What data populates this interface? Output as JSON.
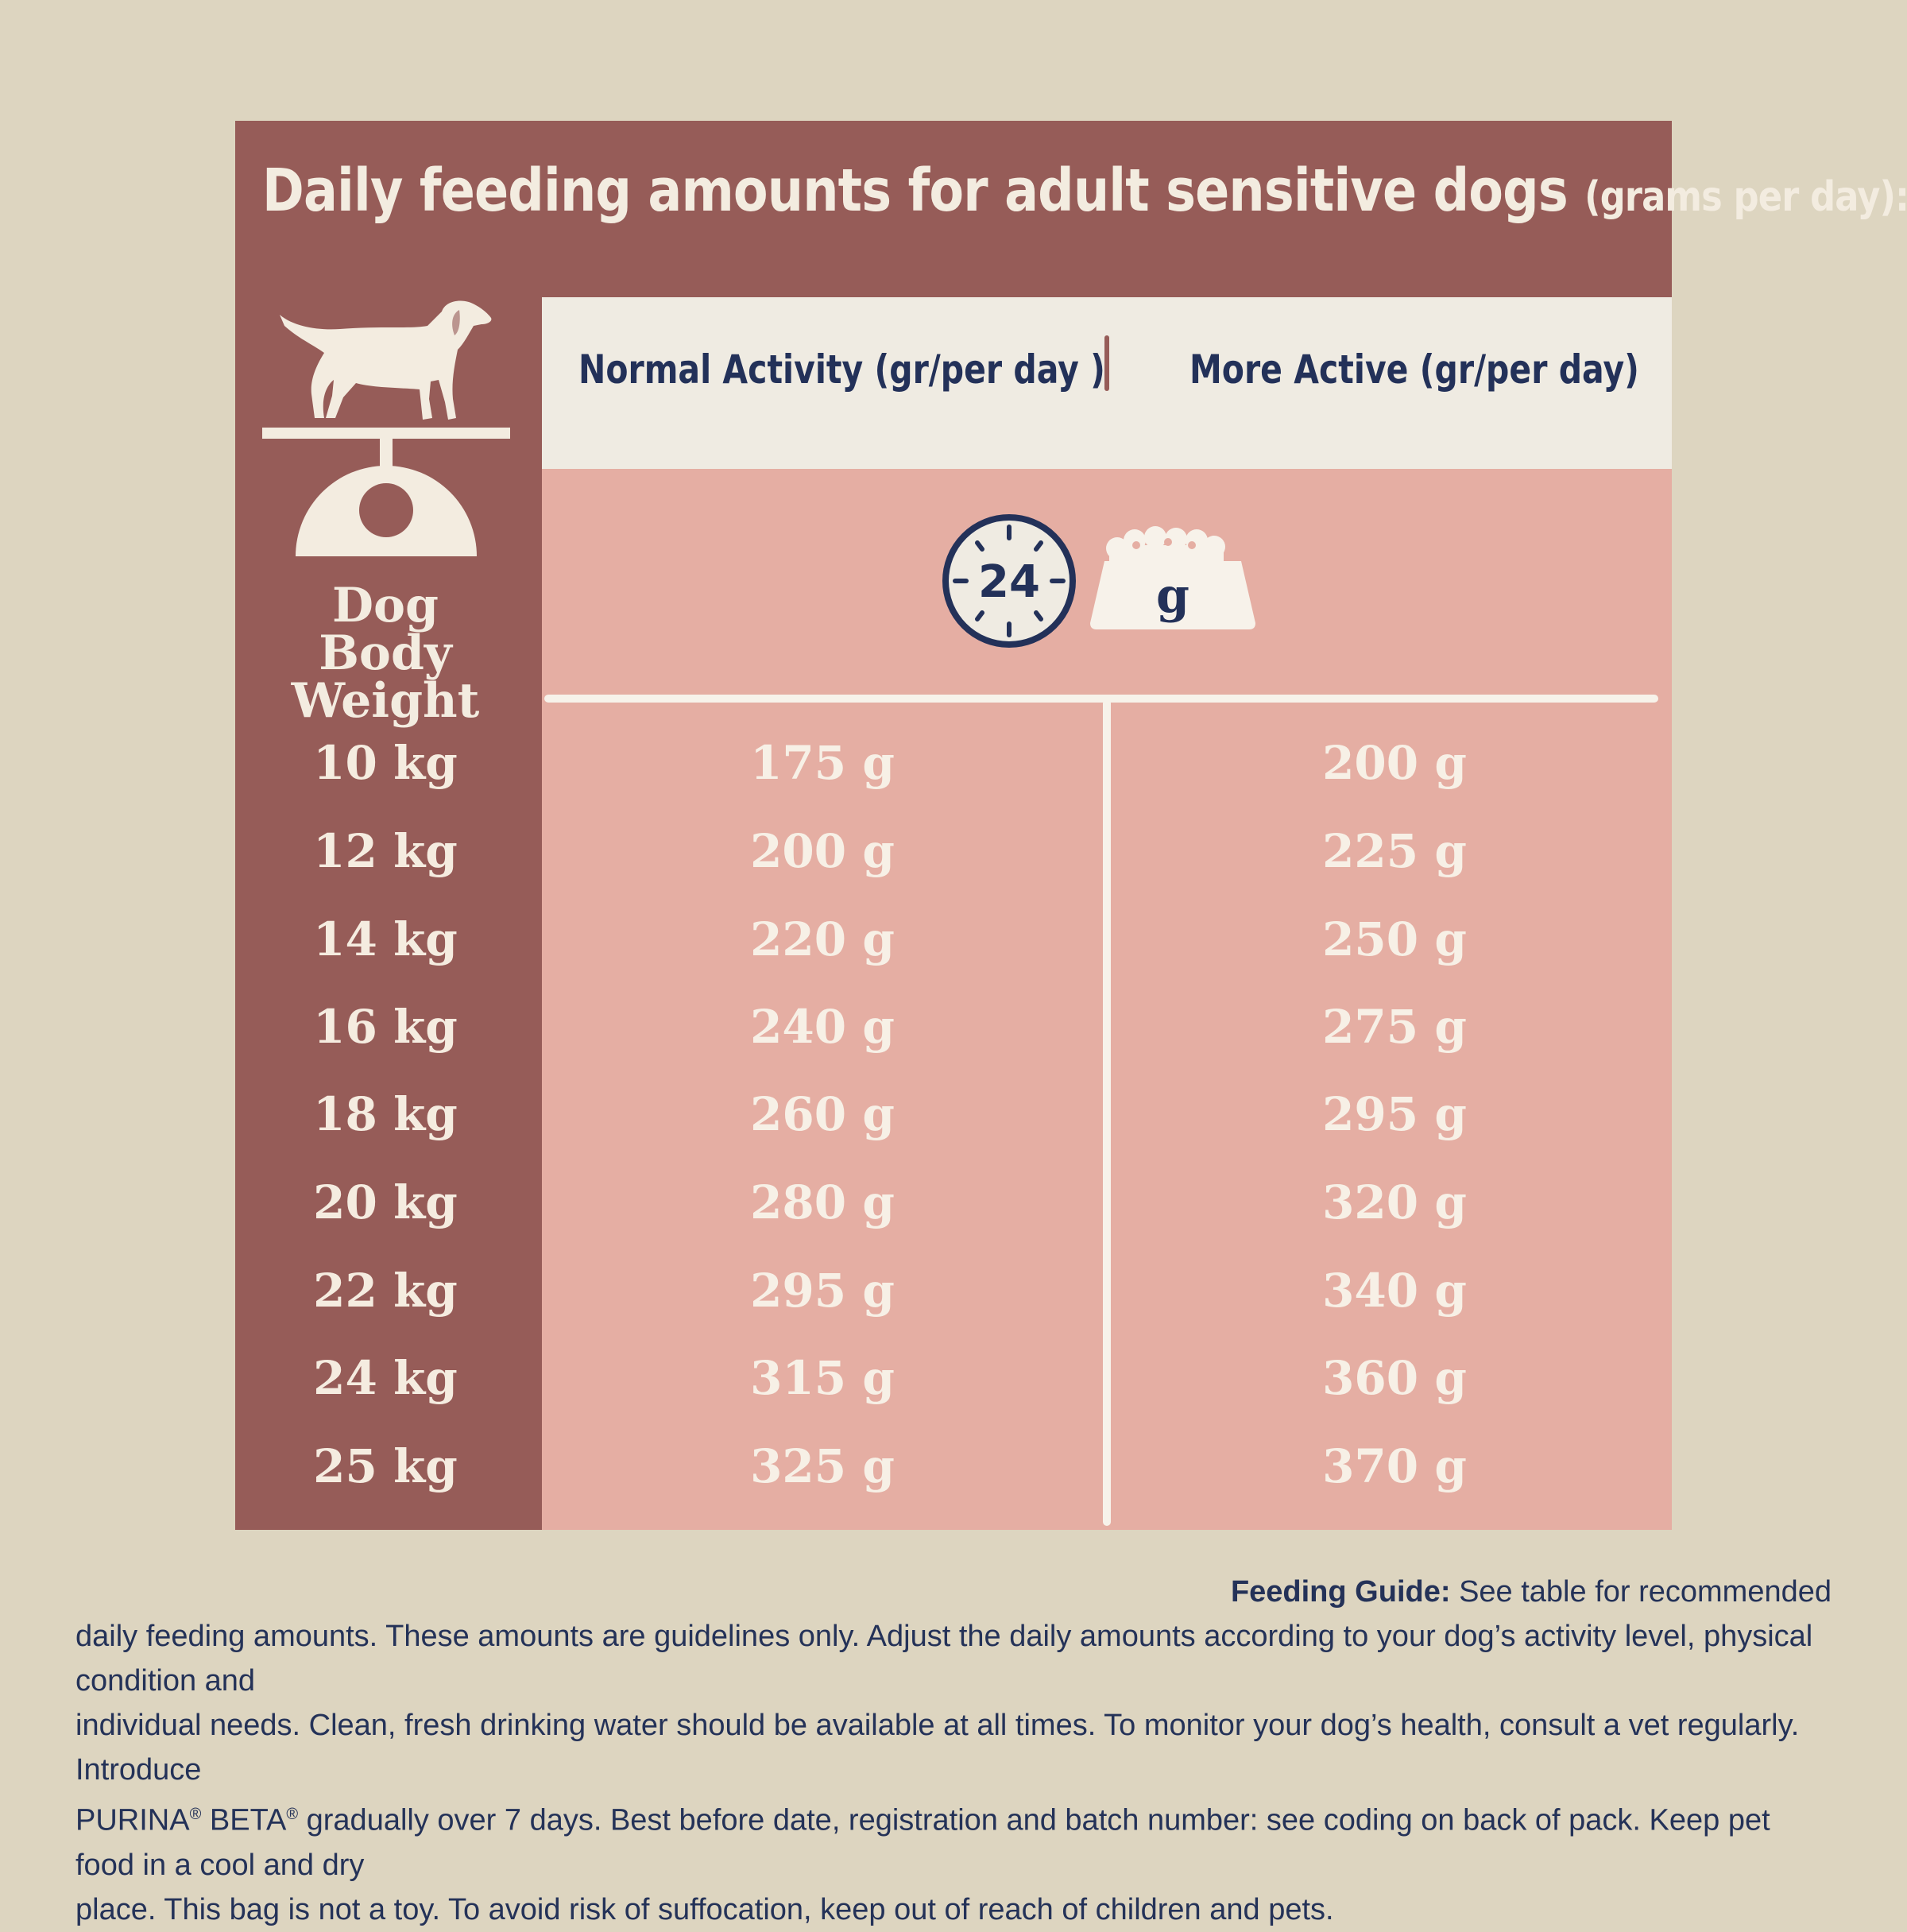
{
  "title": {
    "main": "Daily feeding amounts for adult sensitive dogs",
    "unit": "(grams per day):"
  },
  "headers": {
    "weight": [
      "Dog Body",
      "Weight"
    ],
    "normal": "Normal Activity (gr/per day )",
    "active": "More Active (gr/per day)"
  },
  "icons": {
    "clock_text": "24",
    "bowl_text": "g"
  },
  "colors": {
    "background": "#ddd5c0",
    "panel": "#965c58",
    "table_body": "#e5aea3",
    "header_band": "#efebe2",
    "heading_text": "#233159"
  },
  "rows": [
    {
      "weight": "10 kg",
      "normal": "175 g",
      "active": "200 g"
    },
    {
      "weight": "12 kg",
      "normal": "200 g",
      "active": "225 g"
    },
    {
      "weight": "14 kg",
      "normal": "220 g",
      "active": "250 g"
    },
    {
      "weight": "16 kg",
      "normal": "240 g",
      "active": "275 g"
    },
    {
      "weight": "18 kg",
      "normal": "260 g",
      "active": "295 g"
    },
    {
      "weight": "20 kg",
      "normal": "280 g",
      "active": "320 g"
    },
    {
      "weight": "22 kg",
      "normal": "295 g",
      "active": "340 g"
    },
    {
      "weight": "24 kg",
      "normal": "315 g",
      "active": "360 g"
    },
    {
      "weight": "25 kg",
      "normal": "325 g",
      "active": "370 g"
    }
  ],
  "footer": {
    "label": "Feeding Guide:",
    "line1": "See table for recommended",
    "line2": "daily feeding amounts. These amounts are guidelines only. Adjust the daily amounts according to your dog’s activity level, physical condition and",
    "line3": "individual needs. Clean, fresh drinking water should be available at all times. To monitor your dog’s health, consult a vet regularly. Introduce",
    "line4_a": "PURINA",
    "reg": "®",
    "line4_b": " BETA",
    "line4_c": " gradually over 7 days. Best before date, registration and batch number: see coding on back of pack. Keep pet food in a cool and dry",
    "line5": "place. This bag is not a toy. To avoid risk of suffocation, keep out of reach of children and pets."
  }
}
